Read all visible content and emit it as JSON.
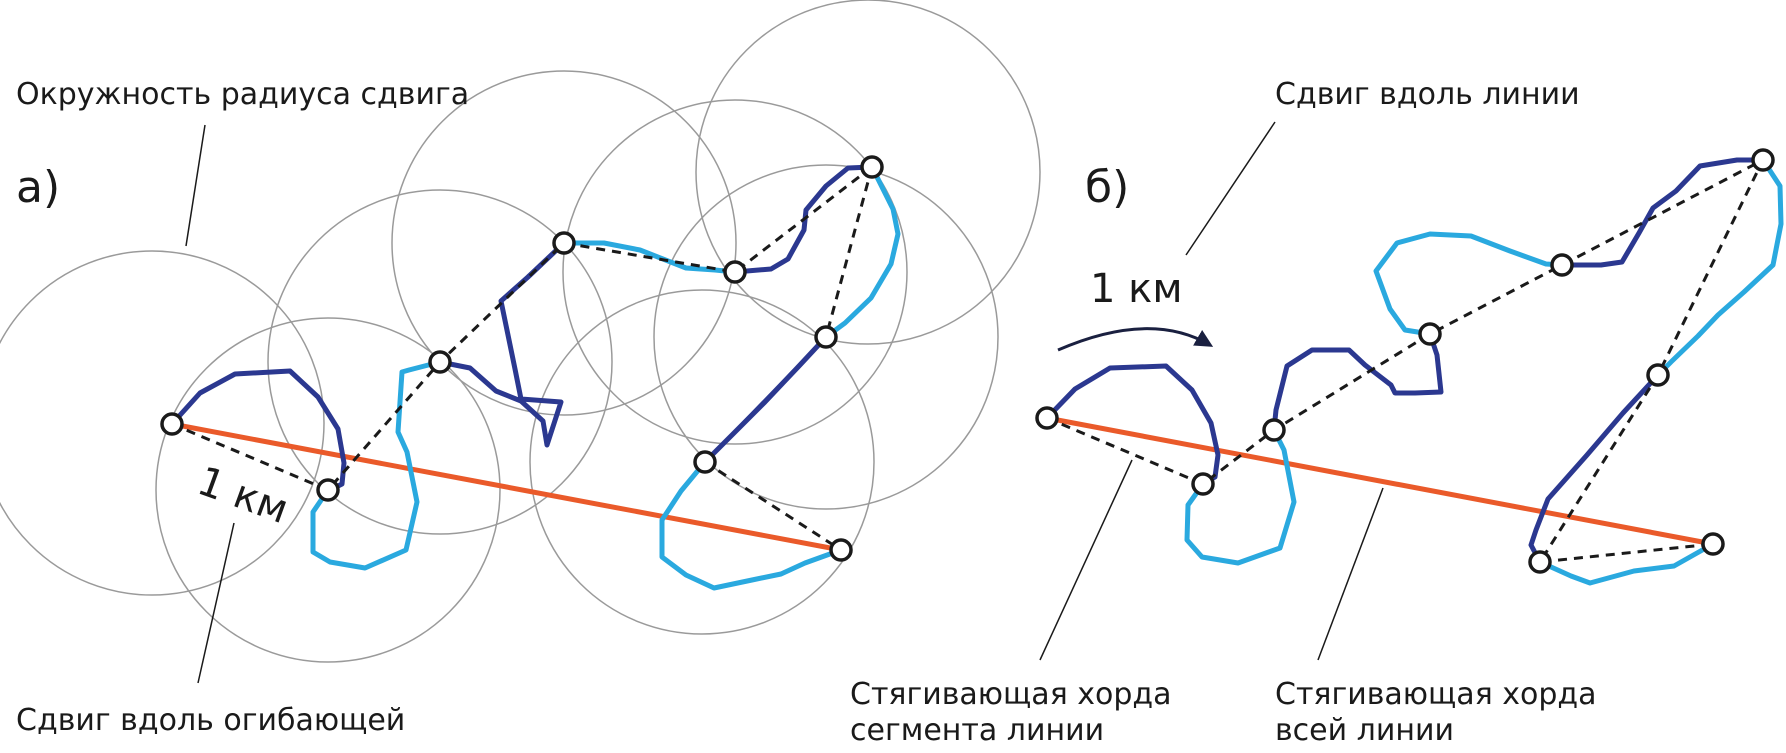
{
  "panel_a": {
    "letter": "а)",
    "circle_label": "Окружность радиуса сдвига",
    "distance_label": "1 км",
    "bottom_label": "Сдвиг вдоль огибающей"
  },
  "panel_b": {
    "letter": "б)",
    "top_label": "Сдвиг вдоль линии",
    "distance_label": "1 км",
    "segment_chord_label_line1": "Стягивающая хорда",
    "segment_chord_label_line2": "сегмента линии",
    "whole_chord_label_line1": "Стягивающая хорда",
    "whole_chord_label_line2": "всей линии"
  },
  "colors": {
    "line_dark": "#2b3890",
    "line_light": "#2aa9df",
    "whole_chord": "#ea5a2a",
    "segment_chord": "#1a1a1a",
    "shift_circle": "#9a9a9a"
  },
  "icons": {
    "vertex": "vertex-node-icon",
    "arrow": "curved-arrow-icon"
  }
}
